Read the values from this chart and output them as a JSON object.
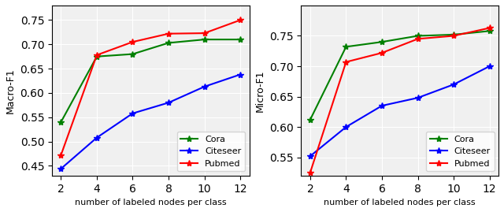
{
  "x": [
    2,
    4,
    6,
    8,
    10,
    12
  ],
  "macro_cora": [
    0.54,
    0.675,
    0.68,
    0.703,
    0.71,
    0.71
  ],
  "macro_citeseer": [
    0.444,
    0.508,
    0.558,
    0.58,
    0.613,
    0.638
  ],
  "macro_pubmed": [
    0.472,
    0.678,
    0.705,
    0.722,
    0.723,
    0.75
  ],
  "micro_cora": [
    0.612,
    0.732,
    0.74,
    0.75,
    0.752,
    0.758
  ],
  "micro_citeseer": [
    0.552,
    0.6,
    0.635,
    0.648,
    0.67,
    0.7
  ],
  "micro_pubmed": [
    0.525,
    0.707,
    0.722,
    0.745,
    0.75,
    0.763
  ],
  "color_cora": "#008000",
  "color_citeseer": "#0000FF",
  "color_pubmed": "#FF0000",
  "marker": "*",
  "xlabel": "number of labeled nodes per class",
  "ylabel_left": "Macro-F1",
  "ylabel_right": "Micro-F1",
  "legend_labels": [
    "Cora",
    "Citeseer",
    "Pubmed"
  ],
  "xticks": [
    2,
    4,
    6,
    8,
    10,
    12
  ],
  "ylim_left": [
    0.43,
    0.78
  ],
  "ylim_right": [
    0.52,
    0.8
  ],
  "yticks_left": [
    0.45,
    0.5,
    0.55,
    0.6,
    0.65,
    0.7,
    0.75
  ],
  "yticks_right": [
    0.55,
    0.6,
    0.65,
    0.7,
    0.75
  ],
  "background_color": "#f0f0f0"
}
